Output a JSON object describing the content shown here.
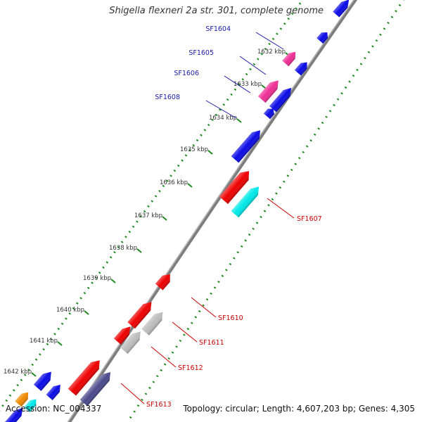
{
  "title": "Shigella flexneri 2a str. 301, complete genome",
  "accession": "Accession: NC_004337",
  "stats": "Topology: circular; Length: 4,607,203 bp; Genes: 4,305",
  "colors": {
    "backbone": "#7d7d7d",
    "tick": "#1f8a1f",
    "label_fwd": "#1a1aa8",
    "label_rev": "#cc0000",
    "blue": "#0a0ae6",
    "pink": "#ee2f96",
    "red": "#ee0000",
    "cyan": "#00e8e8",
    "gray": "#bdbdbd",
    "navy": "#4a4a8c",
    "orange": "#f08a00"
  },
  "ticks": [
    {
      "label": "1632 kbp"
    },
    {
      "label": "1633 kbp"
    },
    {
      "label": "1634 kbp"
    },
    {
      "label": "1635 kbp"
    },
    {
      "label": "1636 kbp"
    },
    {
      "label": "1637 kbp"
    },
    {
      "label": "1638 kbp"
    },
    {
      "label": "1639 kbp"
    },
    {
      "label": "1640 kbp"
    },
    {
      "label": "1641 kbp"
    },
    {
      "label": "1642 kbp"
    }
  ],
  "gene_labels": [
    {
      "name": "SF1604",
      "strand": "forward"
    },
    {
      "name": "SF1605",
      "strand": "forward"
    },
    {
      "name": "SF1606",
      "strand": "forward"
    },
    {
      "name": "SF1608",
      "strand": "forward"
    },
    {
      "name": "SF1607",
      "strand": "reverse"
    },
    {
      "name": "SF1610",
      "strand": "reverse"
    },
    {
      "name": "SF1611",
      "strand": "reverse"
    },
    {
      "name": "SF1612",
      "strand": "reverse"
    },
    {
      "name": "SF1613",
      "strand": "reverse"
    }
  ]
}
